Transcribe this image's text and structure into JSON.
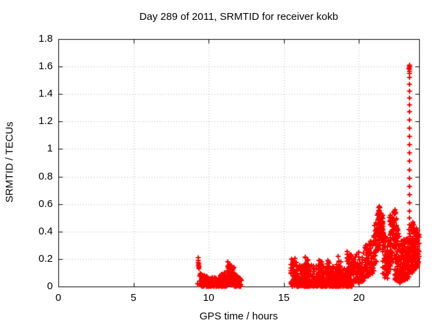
{
  "figure": {
    "background": "#ffffff"
  },
  "chart_data": {
    "type": "scatter",
    "title": "Day 289 of 2011, SRMTID for receiver kokb",
    "xlabel": "GPS time / hours",
    "ylabel": "SRMTID / TECUs",
    "xlim": [
      0,
      24
    ],
    "ylim": [
      0,
      1.8
    ],
    "grid": true,
    "legend": false,
    "xticks": [
      {
        "value": 0,
        "label": "0"
      },
      {
        "value": 5,
        "label": "5"
      },
      {
        "value": 10,
        "label": "10"
      },
      {
        "value": 15,
        "label": "15"
      },
      {
        "value": 20,
        "label": "20"
      }
    ],
    "yticks": [
      {
        "value": 0,
        "label": "0"
      },
      {
        "value": 0.2,
        "label": "0.2"
      },
      {
        "value": 0.4,
        "label": "0.4"
      },
      {
        "value": 0.6,
        "label": "0.6"
      },
      {
        "value": 0.8,
        "label": "0.8"
      },
      {
        "value": 1,
        "label": "1"
      },
      {
        "value": 1.2,
        "label": "1.2"
      },
      {
        "value": 1.4,
        "label": "1.4"
      },
      {
        "value": 1.6,
        "label": "1.6"
      },
      {
        "value": 1.8,
        "label": "1.8"
      }
    ],
    "marker": {
      "shape": "plus",
      "color": "#ff0000",
      "size": 7,
      "stroke": 2
    },
    "colors": {
      "frame": "#000000",
      "grid": "#b0b0b0",
      "text": "#000000"
    },
    "series": [
      {
        "name": "SRMTID",
        "points": [
          [
            9.3,
            0.21
          ],
          [
            9.33,
            0.19
          ],
          [
            9.31,
            0.175
          ],
          [
            9.35,
            0.165
          ],
          [
            9.32,
            0.155
          ],
          [
            9.36,
            0.15
          ],
          [
            9.34,
            0.14
          ],
          [
            9.37,
            0.13
          ],
          [
            9.28,
            0.02
          ],
          [
            23.36,
            1.61
          ],
          [
            23.34,
            1.6
          ],
          [
            23.38,
            1.6
          ],
          [
            23.36,
            1.595
          ],
          [
            23.33,
            1.585
          ],
          [
            23.37,
            1.58
          ],
          [
            23.35,
            1.565
          ],
          [
            23.36,
            1.55
          ],
          [
            23.36,
            1.52
          ],
          [
            23.37,
            1.47
          ],
          [
            23.36,
            1.42
          ],
          [
            23.35,
            1.37
          ],
          [
            23.37,
            1.32
          ],
          [
            23.36,
            1.27
          ],
          [
            23.36,
            1.21
          ],
          [
            23.37,
            1.15
          ],
          [
            23.36,
            1.09
          ],
          [
            23.35,
            1.03
          ],
          [
            23.36,
            0.97
          ],
          [
            23.37,
            0.91
          ],
          [
            23.36,
            0.85
          ],
          [
            23.36,
            0.79
          ],
          [
            23.37,
            0.73
          ],
          [
            23.36,
            0.67
          ],
          [
            23.36,
            0.61
          ],
          [
            23.35,
            0.55
          ],
          [
            23.36,
            0.5
          ],
          [
            23.37,
            0.45
          ]
        ],
        "density_bands": [
          {
            "t": [
              9.4,
              9.9
            ],
            "lo": [
              0,
              0
            ],
            "hi": [
              0.1,
              0.07
            ],
            "n": 80,
            "bias": 1.4
          },
          {
            "t": [
              9.9,
              11.25
            ],
            "lo": [
              0,
              0
            ],
            "hi": [
              0.065,
              0.06
            ],
            "n": 190,
            "bias": 1.3
          },
          {
            "t": [
              10.75,
              11.1
            ],
            "lo": [
              0,
              0
            ],
            "hi": [
              0.11,
              0.1
            ],
            "n": 40,
            "bias": 1.2
          },
          {
            "t": [
              11.25,
              11.7
            ],
            "lo": [
              0.01,
              0.01
            ],
            "hi": [
              0.18,
              0.14
            ],
            "n": 80,
            "bias": 1.3
          },
          {
            "t": [
              11.7,
              12.2
            ],
            "lo": [
              0,
              0
            ],
            "hi": [
              0.1,
              0.05
            ],
            "n": 65,
            "bias": 1.4
          },
          {
            "t": [
              15.45,
              15.85
            ],
            "lo": [
              0,
              0
            ],
            "hi": [
              0.2,
              0.22
            ],
            "n": 45,
            "bias": 1.5
          },
          {
            "t": [
              15.62,
              15.68
            ],
            "lo": [
              0.02,
              0.02
            ],
            "hi": [
              0.22,
              0.22
            ],
            "n": 12,
            "bias": 1
          },
          {
            "t": [
              15.85,
              19.55
            ],
            "lo": [
              0,
              0
            ],
            "hi": [
              0.05,
              0.05
            ],
            "n": 420,
            "bias": 1
          },
          {
            "t": [
              15.85,
              19.55
            ],
            "lo": [
              0,
              0
            ],
            "hi": [
              0.16,
              0.14
            ],
            "n": 300,
            "bias": 1.6
          },
          {
            "t": [
              16.3,
              16.65
            ],
            "lo": [
              0.04,
              0.04
            ],
            "hi": [
              0.23,
              0.19
            ],
            "n": 40,
            "bias": 1.2
          },
          {
            "t": [
              17.35,
              17.65
            ],
            "lo": [
              0.04,
              0.04
            ],
            "hi": [
              0.2,
              0.17
            ],
            "n": 30,
            "bias": 1.2
          },
          {
            "t": [
              17.9,
              18.15
            ],
            "lo": [
              0.04,
              0.04
            ],
            "hi": [
              0.2,
              0.18
            ],
            "n": 30,
            "bias": 1.2
          },
          {
            "t": [
              18.5,
              18.8
            ],
            "lo": [
              0.04,
              0.04
            ],
            "hi": [
              0.24,
              0.2
            ],
            "n": 32,
            "bias": 1.2
          },
          {
            "t": [
              19.15,
              19.55
            ],
            "lo": [
              0.05,
              0.08
            ],
            "hi": [
              0.26,
              0.24
            ],
            "n": 40,
            "bias": 1.2
          },
          {
            "t": [
              19.55,
              20.35
            ],
            "lo": [
              0.02,
              0.04
            ],
            "hi": [
              0.22,
              0.28
            ],
            "n": 90,
            "bias": 1.3
          },
          {
            "t": [
              20.35,
              21.05
            ],
            "lo": [
              0.06,
              0.1
            ],
            "hi": [
              0.3,
              0.38
            ],
            "n": 85,
            "bias": 1.2
          },
          {
            "t": [
              21.05,
              21.45
            ],
            "lo": [
              0.12,
              0.3
            ],
            "hi": [
              0.45,
              0.62
            ],
            "n": 65,
            "bias": 1
          },
          {
            "t": [
              21.3,
              21.62
            ],
            "lo": [
              0.35,
              0.3
            ],
            "hi": [
              0.61,
              0.5
            ],
            "n": 45,
            "bias": 1
          },
          {
            "t": [
              21.55,
              21.9
            ],
            "lo": [
              0.08,
              0.05
            ],
            "hi": [
              0.5,
              0.32
            ],
            "n": 55,
            "bias": 1.2
          },
          {
            "t": [
              21.9,
              22.1
            ],
            "lo": [
              0.05,
              0.12
            ],
            "hi": [
              0.32,
              0.4
            ],
            "n": 30,
            "bias": 1.2
          },
          {
            "t": [
              22.05,
              22.5
            ],
            "lo": [
              0.15,
              0.2
            ],
            "hi": [
              0.52,
              0.57
            ],
            "n": 70,
            "bias": 1
          },
          {
            "t": [
              22.4,
              22.75
            ],
            "lo": [
              0.04,
              0.02
            ],
            "hi": [
              0.5,
              0.38
            ],
            "n": 70,
            "bias": 1.3
          },
          {
            "t": [
              22.7,
              23.3
            ],
            "lo": [
              0.02,
              0.06
            ],
            "hi": [
              0.33,
              0.36
            ],
            "n": 130,
            "bias": 1.3
          },
          {
            "t": [
              23.3,
              23.6
            ],
            "lo": [
              0.08,
              0.1
            ],
            "hi": [
              0.42,
              0.46
            ],
            "n": 60,
            "bias": 1.2
          },
          {
            "t": [
              23.55,
              24.0
            ],
            "lo": [
              0.1,
              0.15
            ],
            "hi": [
              0.5,
              0.38
            ],
            "n": 110,
            "bias": 1.2
          }
        ]
      }
    ]
  }
}
